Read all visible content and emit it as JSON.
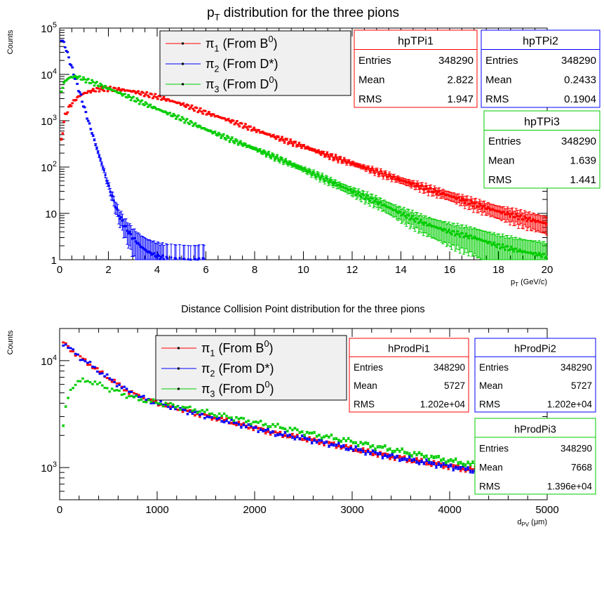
{
  "chart_data": [
    {
      "type": "scatter",
      "title": "p_T distribution for the three pions",
      "ylabel": "Counts",
      "xlabel": "p_T (GeV/c)",
      "xlim": [
        0,
        20
      ],
      "ylim": [
        1,
        100000
      ],
      "yscale": "log",
      "x_ticks": [
        "0",
        "2",
        "4",
        "6",
        "8",
        "10",
        "12",
        "14",
        "16",
        "18",
        "20"
      ],
      "y_ticks": [
        "1",
        "10",
        "10^2",
        "10^3",
        "10^4",
        "10^5"
      ],
      "legend_position": "top-center",
      "legend": [
        {
          "label": "π_1 (From B^0)",
          "color": "#ff0000"
        },
        {
          "label": "π_2 (From D*)",
          "color": "#0000ff"
        },
        {
          "label": "π_3 (From D^0)",
          "color": "#00cc00"
        }
      ],
      "series": [
        {
          "name": "π_1 (From B^0)",
          "color": "#ff0000",
          "x": [
            0.05,
            0.2,
            0.4,
            0.6,
            0.8,
            1.0,
            1.3,
            1.6,
            2.0,
            2.5,
            3.0,
            4.0,
            5.0,
            6.0,
            7.0,
            8.0,
            9.0,
            10.0,
            11.0,
            12.0,
            13.0,
            14.0,
            15.0,
            16.0,
            17.0,
            18.0,
            19.0,
            20.0
          ],
          "y": [
            300,
            1200,
            2000,
            2700,
            3400,
            3900,
            4400,
            4800,
            4900,
            4700,
            4300,
            3300,
            2300,
            1500,
            1000,
            640,
            420,
            280,
            180,
            120,
            80,
            52,
            35,
            24,
            16,
            11,
            8,
            6
          ]
        },
        {
          "name": "π_2 (From D*)",
          "color": "#0000ff",
          "x": [
            0.05,
            0.15,
            0.25,
            0.35,
            0.5,
            0.65,
            0.8,
            1.0,
            1.2,
            1.4,
            1.6,
            1.8,
            2.0,
            2.2,
            2.4,
            2.7,
            3.0,
            3.3,
            3.6,
            4.0,
            4.5,
            5.0,
            6.0
          ],
          "y": [
            60000,
            50000,
            38000,
            25000,
            14000,
            8000,
            4500,
            2000,
            900,
            420,
            190,
            90,
            40,
            20,
            10,
            5,
            3,
            2,
            1.5,
            1.2,
            1,
            1,
            1
          ]
        },
        {
          "name": "π_3 (From D^0)",
          "color": "#00cc00",
          "x": [
            0.05,
            0.2,
            0.4,
            0.6,
            0.8,
            1.0,
            1.5,
            2.0,
            3.0,
            4.0,
            5.0,
            6.0,
            7.0,
            8.0,
            9.0,
            10.0,
            11.0,
            12.0,
            13.0,
            14.0,
            15.0,
            16.0,
            17.0,
            18.0,
            19.0,
            20.0
          ],
          "y": [
            4000,
            7000,
            8500,
            9000,
            8600,
            7800,
            6300,
            5000,
            3000,
            1800,
            1100,
            650,
            400,
            250,
            150,
            90,
            52,
            30,
            18,
            10,
            6,
            4,
            3,
            2,
            1.5,
            1.2
          ]
        }
      ]
    },
    {
      "type": "scatter",
      "title": "Distance Collision Point distribution for the three pions",
      "ylabel": "Counts",
      "xlabel": "d_PV (μm)",
      "xlim": [
        0,
        5000
      ],
      "ylim": [
        500,
        20000
      ],
      "yscale": "log",
      "x_ticks": [
        "0",
        "1000",
        "2000",
        "3000",
        "4000",
        "5000"
      ],
      "y_ticks": [
        "10^3",
        "10^4"
      ],
      "legend_position": "top-center",
      "legend": [
        {
          "label": "π_1 (From B^0)",
          "color": "#ff0000"
        },
        {
          "label": "π_2 (From D*)",
          "color": "#0000ff"
        },
        {
          "label": "π_3 (From D^0)",
          "color": "#00cc00"
        }
      ],
      "series": [
        {
          "name": "π_1 (From B^0)",
          "color": "#ff0000",
          "x": [
            25,
            75,
            125,
            200,
            300,
            400,
            500,
            600,
            700,
            800,
            900,
            1000,
            1200,
            1400,
            1600,
            1800,
            2000,
            2200,
            2400,
            2600,
            2800,
            3000,
            3200,
            3400,
            3600,
            3800,
            4000,
            4200,
            4400,
            4600,
            4800,
            5000
          ],
          "y": [
            15000,
            13800,
            12500,
            10900,
            9400,
            8000,
            6900,
            6000,
            5200,
            4700,
            4300,
            4000,
            3600,
            3200,
            2900,
            2600,
            2350,
            2100,
            1950,
            1800,
            1650,
            1500,
            1380,
            1270,
            1180,
            1100,
            1030,
            960,
            880,
            810,
            760,
            700
          ]
        },
        {
          "name": "π_2 (From D*)",
          "color": "#0000ff",
          "x": [
            25,
            75,
            125,
            200,
            300,
            400,
            500,
            600,
            700,
            800,
            900,
            1000,
            1200,
            1400,
            1600,
            1800,
            2000,
            2200,
            2400,
            2600,
            2800,
            3000,
            3200,
            3400,
            3600,
            3800,
            4000,
            4200,
            4400,
            4600,
            4800,
            5000
          ],
          "y": [
            15000,
            13800,
            12500,
            10900,
            9400,
            8000,
            6900,
            6000,
            5200,
            4700,
            4300,
            4000,
            3600,
            3200,
            2900,
            2600,
            2350,
            2100,
            1950,
            1800,
            1650,
            1500,
            1380,
            1270,
            1180,
            1100,
            1030,
            960,
            880,
            810,
            760,
            700
          ]
        },
        {
          "name": "π_3 (From D^0)",
          "color": "#00cc00",
          "x": [
            25,
            75,
            125,
            200,
            300,
            400,
            500,
            600,
            700,
            800,
            900,
            1000,
            1200,
            1400,
            1600,
            1800,
            2000,
            2200,
            2400,
            2600,
            2800,
            3000,
            3200,
            3400,
            3600,
            3800,
            4000,
            4200,
            4400,
            4600,
            4800,
            5000
          ],
          "y": [
            2000,
            4300,
            5700,
            6400,
            6500,
            6000,
            5500,
            5100,
            4700,
            4400,
            4200,
            4050,
            3750,
            3450,
            3150,
            2900,
            2650,
            2450,
            2250,
            2050,
            1900,
            1750,
            1600,
            1480,
            1360,
            1260,
            1160,
            1080,
            1000,
            920,
            860,
            780
          ]
        }
      ]
    }
  ],
  "stats": [
    {
      "title": "hpTPi1",
      "color": "#ff0000",
      "rows": [
        [
          "Entries",
          "348290"
        ],
        [
          "Mean",
          "2.822"
        ],
        [
          "RMS",
          "1.947"
        ]
      ]
    },
    {
      "title": "hpTPi2",
      "color": "#0000ff",
      "rows": [
        [
          "Entries",
          "348290"
        ],
        [
          "Mean",
          "0.2433"
        ],
        [
          "RMS",
          "0.1904"
        ]
      ]
    },
    {
      "title": "hpTPi3",
      "color": "#00cc00",
      "rows": [
        [
          "Entries",
          "348290"
        ],
        [
          "Mean",
          "1.639"
        ],
        [
          "RMS",
          "1.441"
        ]
      ]
    },
    {
      "title": "hProdPi1",
      "color": "#ff0000",
      "rows": [
        [
          "Entries",
          "348290"
        ],
        [
          "Mean",
          "5727"
        ],
        [
          "RMS",
          "1.202e+04"
        ]
      ]
    },
    {
      "title": "hProdPi2",
      "color": "#0000ff",
      "rows": [
        [
          "Entries",
          "348290"
        ],
        [
          "Mean",
          "5727"
        ],
        [
          "RMS",
          "1.202e+04"
        ]
      ]
    },
    {
      "title": "hProdPi3",
      "color": "#00cc00",
      "rows": [
        [
          "Entries",
          "348290"
        ],
        [
          "Mean",
          "7668"
        ],
        [
          "RMS",
          "1.396e+04"
        ]
      ]
    }
  ]
}
